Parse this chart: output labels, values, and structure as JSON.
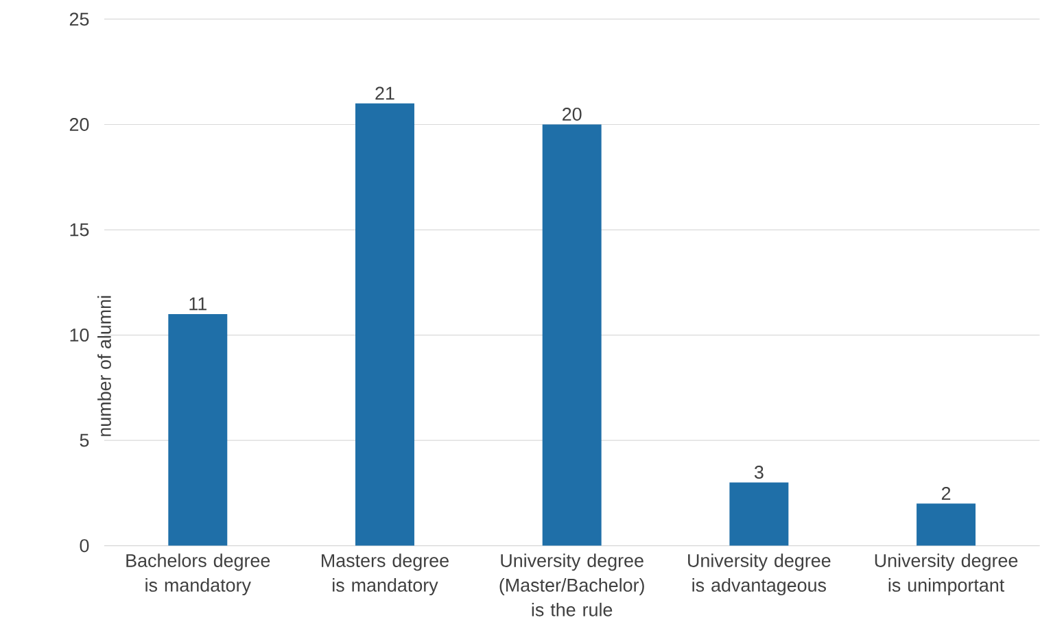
{
  "chart_data": {
    "type": "bar",
    "ylabel": "number of alumni",
    "categories": [
      "Bachelors degree is mandatory",
      "Masters degree is mandatory",
      "University degree (Master/Bachelor) is the rule",
      "University degree is advantageous",
      "University degree is unimportant"
    ],
    "values": [
      11,
      21,
      20,
      3,
      2
    ],
    "color": "#1f6fa8",
    "ylim": [
      0,
      25
    ],
    "yticks": [
      0,
      5,
      10,
      15,
      20,
      25
    ],
    "grid": "y",
    "data_labels": true
  }
}
